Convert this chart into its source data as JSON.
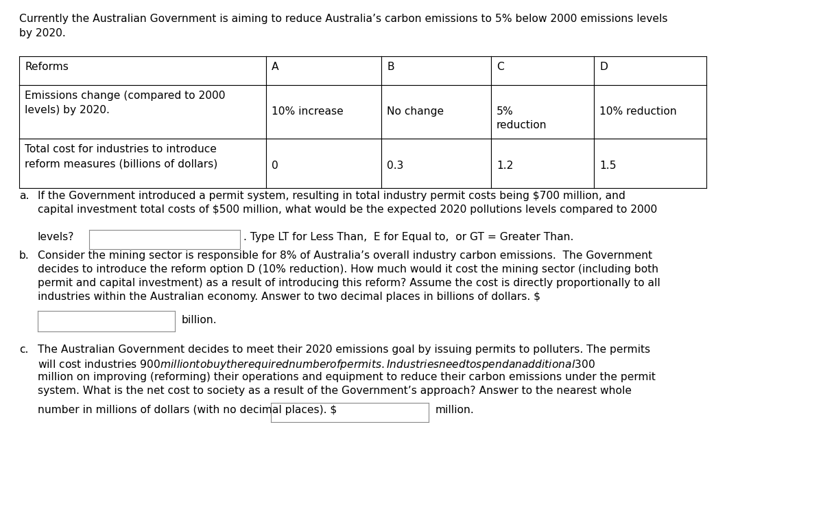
{
  "intro_text": "Currently the Australian Government is aiming to reduce Australia’s carbon emissions to 5% below 2000 emissions levels\nby 2020.",
  "table": {
    "col_headers": [
      "Reforms",
      "A",
      "B",
      "C",
      "D"
    ],
    "row1_label": "Emissions change (compared to 2000\nlevels) by 2020.",
    "row1_values": [
      "10% increase",
      "No change",
      "5%\nreduction",
      "10% reduction"
    ],
    "row2_label": "Total cost for industries to introduce\nreform measures (billions of dollars)",
    "row2_values": [
      "0",
      "0.3",
      "1.2",
      "1.5"
    ]
  },
  "qa_text1": "If the Government introduced a permit system, resulting in total industry permit costs being $700 million, and",
  "qa_text2": "capital investment total costs of $500 million, what would be the expected 2020 pollutions levels compared to 2000",
  "qa_levels": "levels?",
  "qa_type": ". Type LT for Less Than,  E for Equal to,  or GT = Greater Than.",
  "qb_text1": "Consider the mining sector is responsible for 8% of Australia’s overall industry carbon emissions.  The Government",
  "qb_text2": "decides to introduce the reform option D (10% reduction). How much would it cost the mining sector (including both",
  "qb_text3": "permit and capital investment) as a result of introducing this reform? Assume the cost is directly proportionally to all",
  "qb_text4": "industries within the Australian economy. Answer to two decimal places in billions of dollars. $",
  "qb_billion": "billion.",
  "qc_text1": "The Australian Government decides to meet their 2020 emissions goal by issuing permits to polluters. The permits",
  "qc_text2": "will cost industries $900 million to buy the required number of permits. Industries need to spend an additional $300",
  "qc_text3": "million on improving (reforming) their operations and equipment to reduce their carbon emissions under the permit",
  "qc_text4": "system. What is the net cost to society as a result of the Government’s approach? Answer to the nearest whole",
  "qc_lastline": "number in millions of dollars (with no decimal places). $",
  "qc_million": "million.",
  "bg_color": "#ffffff",
  "text_color": "#000000",
  "font_size": 11.2
}
